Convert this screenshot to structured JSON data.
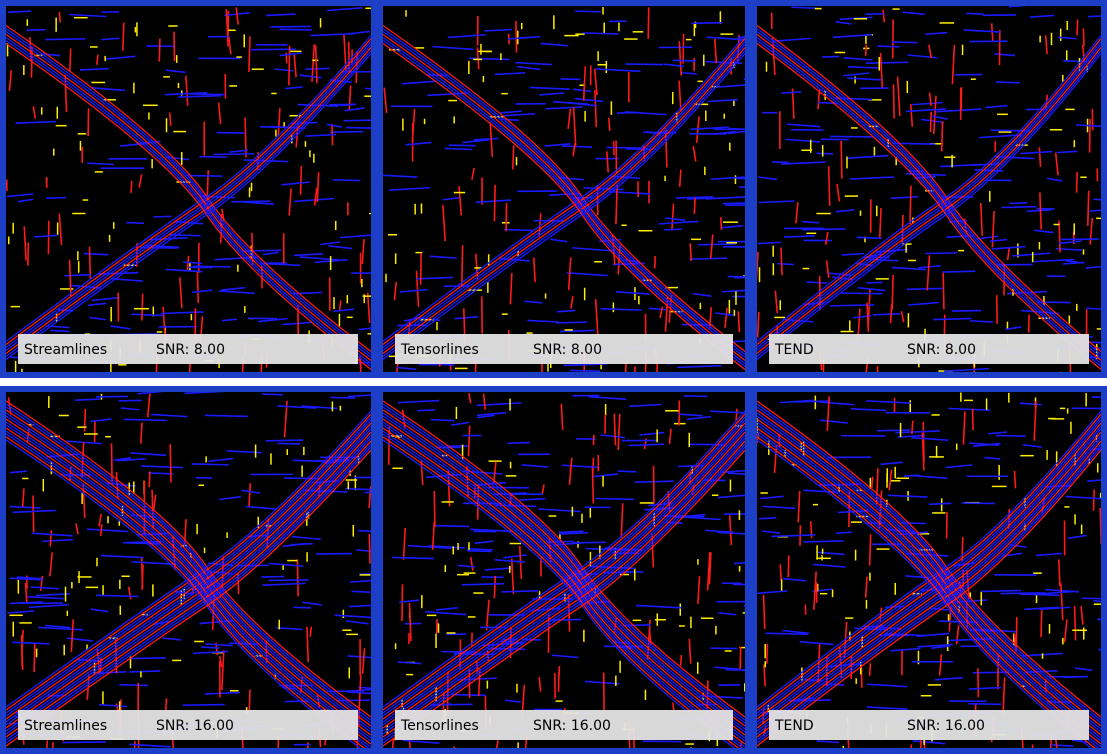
{
  "panels": [
    {
      "method": "Streamlines",
      "snr": "SNR:  8.00"
    },
    {
      "method": "Tensorlines",
      "snr": "SNR:  8.00"
    },
    {
      "method": "TEND",
      "snr": "SNR:  8.00"
    },
    {
      "method": "Streamlines",
      "snr": "SNR: 16.00"
    },
    {
      "method": "Tensorlines",
      "snr": "SNR: 16.00"
    },
    {
      "method": "TEND",
      "snr": "SNR: 16.00"
    }
  ]
}
